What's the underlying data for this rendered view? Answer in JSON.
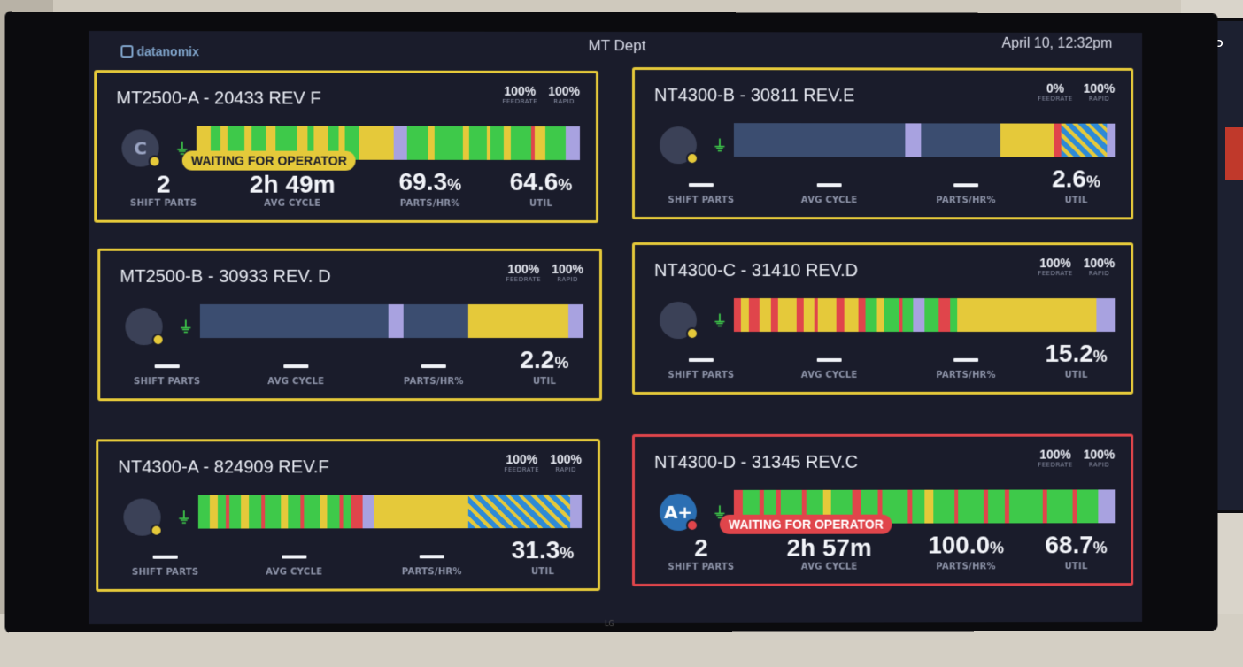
{
  "header": {
    "logo_text": "datanomix",
    "title": "MT Dept",
    "datetime": "April 10, 12:32pm"
  },
  "colors": {
    "green": "#3ec94a",
    "yellow": "#e5c93a",
    "red": "#e0454b",
    "blue_idle": "#3b4d70",
    "lavender": "#a8a2e0",
    "stripe_blue": "#2e8ad6"
  },
  "labels": {
    "feedrate": "FEEDRATE",
    "rapid": "RAPID",
    "shift_parts": "SHIFT PARTS",
    "avg_cycle": "AVG CYCLE",
    "parts_hr": "PARTS/HR%",
    "util": "UTIL",
    "waiting": "WAITING FOR OPERATOR"
  },
  "machines": [
    {
      "title": "MT2500-A - 20433 REV F",
      "feedrate": "100%",
      "rapid": "100%",
      "avatar": "C",
      "avatar_type": "default",
      "status": "yellow",
      "waiting": true,
      "alert": false,
      "shift_parts": "2",
      "avg_cycle": "2h 49m",
      "parts_hr": "69.3%",
      "util": "64.6%",
      "timeline_pattern": "mixed_green_yellow"
    },
    {
      "title": "NT4300-B - 30811 REV.E",
      "feedrate": "0%",
      "rapid": "100%",
      "avatar": "",
      "avatar_type": "default",
      "status": "yellow",
      "waiting": false,
      "alert": false,
      "shift_parts": "",
      "avg_cycle": "",
      "parts_hr": "",
      "util": "2.6%",
      "timeline_pattern": "idle_then_yellow_stripes"
    },
    {
      "title": "MT2500-B - 30933 REV. D",
      "feedrate": "100%",
      "rapid": "100%",
      "avatar": "",
      "avatar_type": "default",
      "status": "yellow",
      "waiting": false,
      "alert": false,
      "shift_parts": "",
      "avg_cycle": "",
      "parts_hr": "",
      "util": "2.2%",
      "timeline_pattern": "idle_then_yellow"
    },
    {
      "title": "NT4300-C - 31410 REV.D",
      "feedrate": "100%",
      "rapid": "100%",
      "avatar": "",
      "avatar_type": "default",
      "status": "yellow",
      "waiting": false,
      "alert": false,
      "shift_parts": "",
      "avg_cycle": "",
      "parts_hr": "",
      "util": "15.2%",
      "timeline_pattern": "mixed_red_yellow"
    },
    {
      "title": "NT4300-A - 824909 REV.F",
      "feedrate": "100%",
      "rapid": "100%",
      "avatar": "",
      "avatar_type": "default",
      "status": "yellow",
      "waiting": false,
      "alert": false,
      "shift_parts": "",
      "avg_cycle": "",
      "parts_hr": "",
      "util": "31.3%",
      "timeline_pattern": "mixed_then_yellow_stripes"
    },
    {
      "title": "NT4300-D - 31345 REV.C",
      "feedrate": "100%",
      "rapid": "100%",
      "avatar": "A+",
      "avatar_type": "grade",
      "status": "red",
      "waiting": true,
      "alert": true,
      "shift_parts": "2",
      "avg_cycle": "2h 57m",
      "parts_hr": "100.0%",
      "util": "68.7%",
      "timeline_pattern": "mixed_green_red"
    }
  ]
}
